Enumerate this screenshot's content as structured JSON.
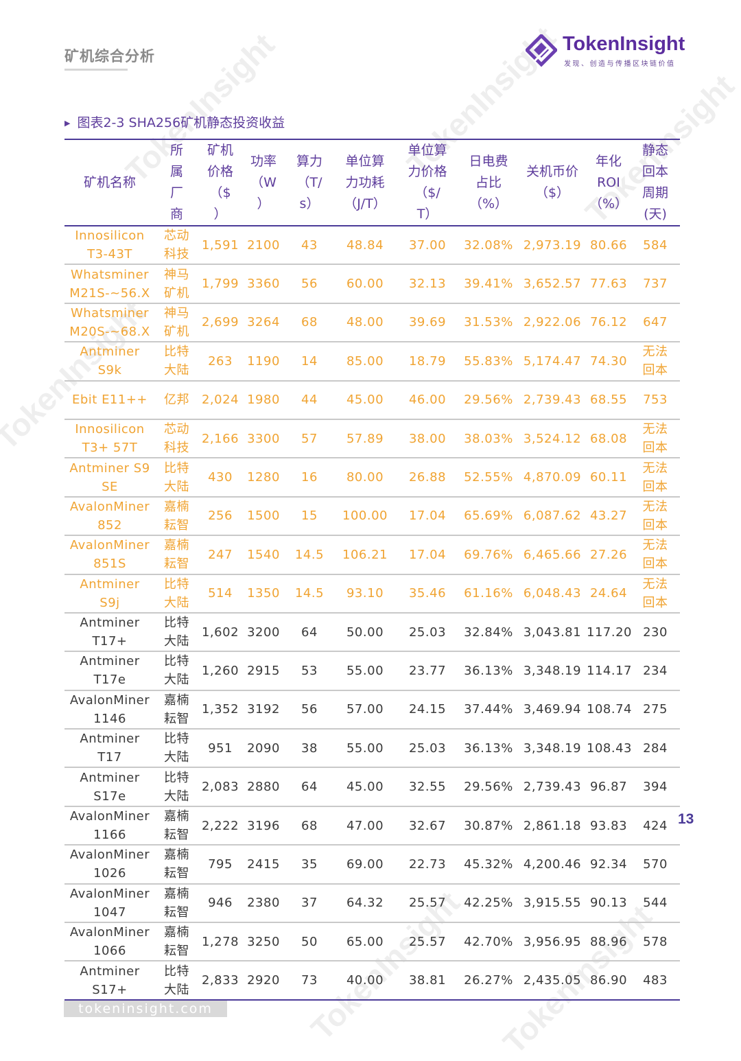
{
  "header": {
    "section_title": "矿机综合分析"
  },
  "logo": {
    "name": "TokenInsight",
    "tagline": "发现、创造与传播区块链价值"
  },
  "caption": "图表2-3 SHA256矿机静态投资收益",
  "chart_data": {
    "type": "table",
    "title": "图表2-3 SHA256矿机静态投资收益",
    "columns": [
      {
        "key": "name",
        "label": [
          "矿机名称"
        ]
      },
      {
        "key": "vendor",
        "label": [
          "所",
          "属",
          "厂",
          "商"
        ]
      },
      {
        "key": "price",
        "label": [
          "矿机",
          "价格",
          "（$",
          "）"
        ]
      },
      {
        "key": "power",
        "label": [
          "功率",
          "（W",
          "）"
        ]
      },
      {
        "key": "hashrate",
        "label": [
          "算力",
          "（T/",
          "s）"
        ]
      },
      {
        "key": "efficiency",
        "label": [
          "单位算",
          "力功耗",
          "（J/T）"
        ]
      },
      {
        "key": "unit_price",
        "label": [
          "单位算",
          "力价格",
          "（$/",
          "T）"
        ]
      },
      {
        "key": "elec_ratio",
        "label": [
          "日电费",
          "占比",
          "（%）"
        ]
      },
      {
        "key": "shutdown_price",
        "label": [
          "关机币价",
          "（$）"
        ]
      },
      {
        "key": "roi",
        "label": [
          "年化",
          "ROI",
          "（%）"
        ]
      },
      {
        "key": "payback",
        "label": [
          "静态",
          "回本",
          "周期",
          "(天)"
        ]
      }
    ],
    "highlight_color": "#f0a433",
    "rows": [
      {
        "highlight": true,
        "name": [
          "Innosilicon",
          "T3-43T"
        ],
        "vendor": [
          "芯动",
          "科技"
        ],
        "price": "1,591",
        "power": "2100",
        "hashrate": "43",
        "efficiency": "48.84",
        "unit_price": "37.00",
        "elec_ratio": "32.08%",
        "shutdown_price": "2,973.19",
        "roi": "80.66",
        "payback": [
          "584"
        ]
      },
      {
        "highlight": true,
        "name": [
          "Whatsminer",
          "M21S-~56.X"
        ],
        "vendor": [
          "神马",
          "矿机"
        ],
        "price": "1,799",
        "power": "3360",
        "hashrate": "56",
        "efficiency": "60.00",
        "unit_price": "32.13",
        "elec_ratio": "39.41%",
        "shutdown_price": "3,652.57",
        "roi": "77.63",
        "payback": [
          "737"
        ]
      },
      {
        "highlight": true,
        "name": [
          "Whatsminer",
          "M20S-~68.X"
        ],
        "vendor": [
          "神马",
          "矿机"
        ],
        "price": "2,699",
        "power": "3264",
        "hashrate": "68",
        "efficiency": "48.00",
        "unit_price": "39.69",
        "elec_ratio": "31.53%",
        "shutdown_price": "2,922.06",
        "roi": "76.12",
        "payback": [
          "647"
        ]
      },
      {
        "highlight": true,
        "name": [
          "Antminer",
          "S9k"
        ],
        "vendor": [
          "比特",
          "大陆"
        ],
        "price": "263",
        "power": "1190",
        "hashrate": "14",
        "efficiency": "85.00",
        "unit_price": "18.79",
        "elec_ratio": "55.83%",
        "shutdown_price": "5,174.47",
        "roi": "74.30",
        "payback": [
          "无法",
          "回本"
        ]
      },
      {
        "highlight": true,
        "name": [
          "Ebit E11++"
        ],
        "vendor": [
          "亿邦"
        ],
        "price": "2,024",
        "power": "1980",
        "hashrate": "44",
        "efficiency": "45.00",
        "unit_price": "46.00",
        "elec_ratio": "29.56%",
        "shutdown_price": "2,739.43",
        "roi": "68.55",
        "payback": [
          "753"
        ]
      },
      {
        "highlight": true,
        "name": [
          "Innosilicon",
          "T3+ 57T"
        ],
        "vendor": [
          "芯动",
          "科技"
        ],
        "price": "2,166",
        "power": "3300",
        "hashrate": "57",
        "efficiency": "57.89",
        "unit_price": "38.00",
        "elec_ratio": "38.03%",
        "shutdown_price": "3,524.12",
        "roi": "68.08",
        "payback": [
          "无法",
          "回本"
        ]
      },
      {
        "highlight": true,
        "name": [
          "Antminer S9",
          "SE"
        ],
        "vendor": [
          "比特",
          "大陆"
        ],
        "price": "430",
        "power": "1280",
        "hashrate": "16",
        "efficiency": "80.00",
        "unit_price": "26.88",
        "elec_ratio": "52.55%",
        "shutdown_price": "4,870.09",
        "roi": "60.11",
        "payback": [
          "无法",
          "回本"
        ]
      },
      {
        "highlight": true,
        "name": [
          "AvalonMiner",
          "852"
        ],
        "vendor": [
          "嘉楠",
          "耘智"
        ],
        "price": "256",
        "power": "1500",
        "hashrate": "15",
        "efficiency": "100.00",
        "unit_price": "17.04",
        "elec_ratio": "65.69%",
        "shutdown_price": "6,087.62",
        "roi": "43.27",
        "payback": [
          "无法",
          "回本"
        ]
      },
      {
        "highlight": true,
        "name": [
          "AvalonMiner",
          "851S"
        ],
        "vendor": [
          "嘉楠",
          "耘智"
        ],
        "price": "247",
        "power": "1540",
        "hashrate": "14.5",
        "efficiency": "106.21",
        "unit_price": "17.04",
        "elec_ratio": "69.76%",
        "shutdown_price": "6,465.66",
        "roi": "27.26",
        "payback": [
          "无法",
          "回本"
        ]
      },
      {
        "highlight": true,
        "name": [
          "Antminer",
          "S9j"
        ],
        "vendor": [
          "比特",
          "大陆"
        ],
        "price": "514",
        "power": "1350",
        "hashrate": "14.5",
        "efficiency": "93.10",
        "unit_price": "35.46",
        "elec_ratio": "61.16%",
        "shutdown_price": "6,048.43",
        "roi": "24.64",
        "payback": [
          "无法",
          "回本"
        ]
      },
      {
        "highlight": false,
        "name": [
          "Antminer",
          "T17+"
        ],
        "vendor": [
          "比特",
          "大陆"
        ],
        "price": "1,602",
        "power": "3200",
        "hashrate": "64",
        "efficiency": "50.00",
        "unit_price": "25.03",
        "elec_ratio": "32.84%",
        "shutdown_price": "3,043.81",
        "roi": "117.20",
        "payback": [
          "230"
        ]
      },
      {
        "highlight": false,
        "name": [
          "Antminer",
          "T17e"
        ],
        "vendor": [
          "比特",
          "大陆"
        ],
        "price": "1,260",
        "power": "2915",
        "hashrate": "53",
        "efficiency": "55.00",
        "unit_price": "23.77",
        "elec_ratio": "36.13%",
        "shutdown_price": "3,348.19",
        "roi": "114.17",
        "payback": [
          "234"
        ]
      },
      {
        "highlight": false,
        "name": [
          "AvalonMiner",
          "1146"
        ],
        "vendor": [
          "嘉楠",
          "耘智"
        ],
        "price": "1,352",
        "power": "3192",
        "hashrate": "56",
        "efficiency": "57.00",
        "unit_price": "24.15",
        "elec_ratio": "37.44%",
        "shutdown_price": "3,469.94",
        "roi": "108.74",
        "payback": [
          "275"
        ]
      },
      {
        "highlight": false,
        "name": [
          "Antminer",
          "T17"
        ],
        "vendor": [
          "比特",
          "大陆"
        ],
        "price": "951",
        "power": "2090",
        "hashrate": "38",
        "efficiency": "55.00",
        "unit_price": "25.03",
        "elec_ratio": "36.13%",
        "shutdown_price": "3,348.19",
        "roi": "108.43",
        "payback": [
          "284"
        ]
      },
      {
        "highlight": false,
        "name": [
          "Antminer",
          "S17e"
        ],
        "vendor": [
          "比特",
          "大陆"
        ],
        "price": "2,083",
        "power": "2880",
        "hashrate": "64",
        "efficiency": "45.00",
        "unit_price": "32.55",
        "elec_ratio": "29.56%",
        "shutdown_price": "2,739.43",
        "roi": "96.87",
        "payback": [
          "394"
        ]
      },
      {
        "highlight": false,
        "name": [
          "AvalonMiner",
          "1166"
        ],
        "vendor": [
          "嘉楠",
          "耘智"
        ],
        "price": "2,222",
        "power": "3196",
        "hashrate": "68",
        "efficiency": "47.00",
        "unit_price": "32.67",
        "elec_ratio": "30.87%",
        "shutdown_price": "2,861.18",
        "roi": "93.83",
        "payback": [
          "424"
        ]
      },
      {
        "highlight": false,
        "name": [
          "AvalonMiner",
          "1026"
        ],
        "vendor": [
          "嘉楠",
          "耘智"
        ],
        "price": "795",
        "power": "2415",
        "hashrate": "35",
        "efficiency": "69.00",
        "unit_price": "22.73",
        "elec_ratio": "45.32%",
        "shutdown_price": "4,200.46",
        "roi": "92.34",
        "payback": [
          "570"
        ]
      },
      {
        "highlight": false,
        "name": [
          "AvalonMiner",
          "1047"
        ],
        "vendor": [
          "嘉楠",
          "耘智"
        ],
        "price": "946",
        "power": "2380",
        "hashrate": "37",
        "efficiency": "64.32",
        "unit_price": "25.57",
        "elec_ratio": "42.25%",
        "shutdown_price": "3,915.55",
        "roi": "90.13",
        "payback": [
          "544"
        ]
      },
      {
        "highlight": false,
        "name": [
          "AvalonMiner",
          "1066"
        ],
        "vendor": [
          "嘉楠",
          "耘智"
        ],
        "price": "1,278",
        "power": "3250",
        "hashrate": "50",
        "efficiency": "65.00",
        "unit_price": "25.57",
        "elec_ratio": "42.70%",
        "shutdown_price": "3,956.95",
        "roi": "88.96",
        "payback": [
          "578"
        ]
      },
      {
        "highlight": false,
        "name": [
          "Antminer",
          "S17+"
        ],
        "vendor": [
          "比特",
          "大陆"
        ],
        "price": "2,833",
        "power": "2920",
        "hashrate": "73",
        "efficiency": "40.00",
        "unit_price": "38.81",
        "elec_ratio": "26.27%",
        "shutdown_price": "2,435.05",
        "roi": "86.90",
        "payback": [
          "483"
        ]
      }
    ]
  },
  "page_number": "13",
  "footer": {
    "url": "tokeninsight.com"
  },
  "watermark": {
    "text": "TokenInsight"
  }
}
